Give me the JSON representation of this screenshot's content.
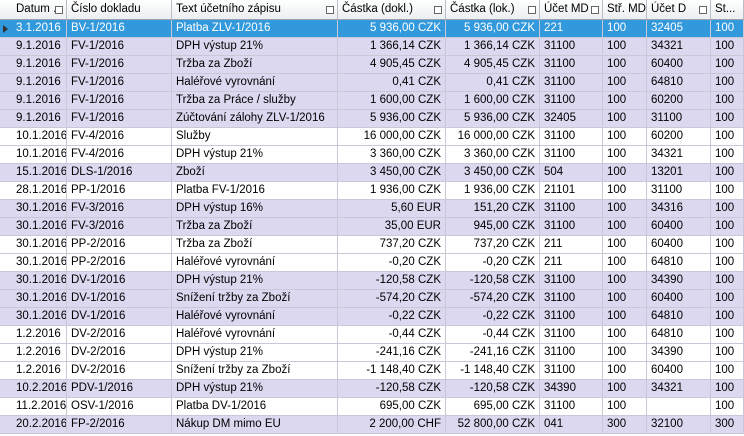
{
  "table": {
    "columns": [
      "Datum ...",
      "Číslo dokladu",
      "Text účetního zápisu",
      "Částka (dokl.)",
      "Částka (lok.)",
      "Účet MD",
      "Stř. MD",
      "Účet D",
      "St..."
    ],
    "selected_row": 0,
    "rows": [
      [
        "3.1.2016",
        "BV-1/2016",
        "Platba ZLV-1/2016",
        "5 936,00 CZK",
        "5 936,00 CZK",
        "221",
        "100",
        "32405",
        "100"
      ],
      [
        "9.1.2016",
        "FV-1/2016",
        "DPH výstup 21%",
        "1 366,14 CZK",
        "1 366,14 CZK",
        "31100",
        "100",
        "34321",
        "100"
      ],
      [
        "9.1.2016",
        "FV-1/2016",
        "Tržba za Zboží",
        "4 905,45 CZK",
        "4 905,45 CZK",
        "31100",
        "100",
        "60400",
        "100"
      ],
      [
        "9.1.2016",
        "FV-1/2016",
        "Haléřové vyrovnání",
        "0,41 CZK",
        "0,41 CZK",
        "31100",
        "100",
        "64810",
        "100"
      ],
      [
        "9.1.2016",
        "FV-1/2016",
        "Tržba za Práce / služby",
        "1 600,00 CZK",
        "1 600,00 CZK",
        "31100",
        "100",
        "60200",
        "100"
      ],
      [
        "9.1.2016",
        "FV-1/2016",
        "Zúčtování zálohy ZLV-1/2016",
        "5 936,00 CZK",
        "5 936,00 CZK",
        "32405",
        "100",
        "31100",
        "100"
      ],
      [
        "10.1.2016",
        "FV-4/2016",
        "Služby",
        "16 000,00 CZK",
        "16 000,00 CZK",
        "31100",
        "100",
        "60200",
        "100"
      ],
      [
        "10.1.2016",
        "FV-4/2016",
        "DPH výstup 21%",
        "3 360,00 CZK",
        "3 360,00 CZK",
        "31100",
        "100",
        "34321",
        "100"
      ],
      [
        "15.1.2016",
        "DLS-1/2016",
        "Zboží",
        "3 450,00 CZK",
        "3 450,00 CZK",
        "504",
        "100",
        "13201",
        "100"
      ],
      [
        "28.1.2016",
        "PP-1/2016",
        "Platba FV-1/2016",
        "1 936,00 CZK",
        "1 936,00 CZK",
        "21101",
        "100",
        "31100",
        "100"
      ],
      [
        "30.1.2016",
        "FV-3/2016",
        "DPH výstup 16%",
        "5,60 EUR",
        "151,20 CZK",
        "31100",
        "100",
        "34316",
        "100"
      ],
      [
        "30.1.2016",
        "FV-3/2016",
        "Tržba za Zboží",
        "35,00 EUR",
        "945,00 CZK",
        "31100",
        "100",
        "60400",
        "100"
      ],
      [
        "30.1.2016",
        "PP-2/2016",
        "Tržba za Zboží",
        "737,20 CZK",
        "737,20 CZK",
        "211",
        "100",
        "60400",
        "100"
      ],
      [
        "30.1.2016",
        "PP-2/2016",
        "Haléřové vyrovnání",
        "-0,20 CZK",
        "-0,20 CZK",
        "211",
        "100",
        "64810",
        "100"
      ],
      [
        "30.1.2016",
        "DV-1/2016",
        "DPH výstup 21%",
        "-120,58 CZK",
        "-120,58 CZK",
        "31100",
        "100",
        "34390",
        "100"
      ],
      [
        "30.1.2016",
        "DV-1/2016",
        "Snížení tržby za Zboží",
        "-574,20 CZK",
        "-574,20 CZK",
        "31100",
        "100",
        "60400",
        "100"
      ],
      [
        "30.1.2016",
        "DV-1/2016",
        "Haléřové vyrovnání",
        "-0,22 CZK",
        "-0,22 CZK",
        "31100",
        "100",
        "64810",
        "100"
      ],
      [
        "1.2.2016",
        "DV-2/2016",
        "Haléřové vyrovnání",
        "-0,44 CZK",
        "-0,44 CZK",
        "31100",
        "100",
        "64810",
        "100"
      ],
      [
        "1.2.2016",
        "DV-2/2016",
        "DPH výstup 21%",
        "-241,16 CZK",
        "-241,16 CZK",
        "31100",
        "100",
        "34390",
        "100"
      ],
      [
        "1.2.2016",
        "DV-2/2016",
        "Snížení tržby za Zboží",
        "-1 148,40 CZK",
        "-1 148,40 CZK",
        "31100",
        "100",
        "60400",
        "100"
      ],
      [
        "10.2.2016",
        "PDV-1/2016",
        "DPH výstup 21%",
        "-120,58 CZK",
        "-120,58 CZK",
        "34390",
        "100",
        "34321",
        "100"
      ],
      [
        "11.2.2016",
        "OSV-1/2016",
        "Platba DV-1/2016",
        "695,00 CZK",
        "695,00 CZK",
        "31100",
        "100",
        null,
        "100"
      ],
      [
        "20.2.2016",
        "FP-2/2016",
        "Nákup DM mimo EU",
        "2 200,00 CHF",
        "52 800,00 CZK",
        "041",
        "300",
        "32100",
        "300"
      ]
    ]
  }
}
